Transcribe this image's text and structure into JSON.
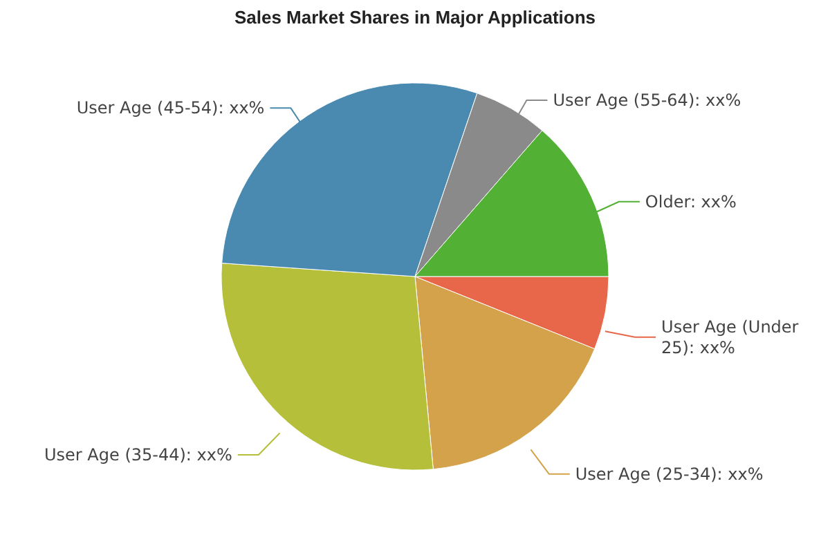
{
  "chart_data": {
    "type": "pie",
    "title": "Sales Market Shares in Major Applications",
    "categories": [
      "User Age (Under 25)",
      "User Age (25-34)",
      "User Age (35-44)",
      "User Age (45-54)",
      "User Age (55-64)",
      "Older"
    ],
    "values": [
      6.1,
      17.4,
      27.6,
      29.1,
      6.2,
      13.6
    ],
    "value_labels": [
      "xx%",
      "xx%",
      "xx%",
      "xx%",
      "xx%",
      "xx%"
    ],
    "colors": [
      "#e8664a",
      "#d4a24a",
      "#b5bf3a",
      "#4a8ab0",
      "#8a8a8a",
      "#52b135"
    ],
    "legend": false
  }
}
